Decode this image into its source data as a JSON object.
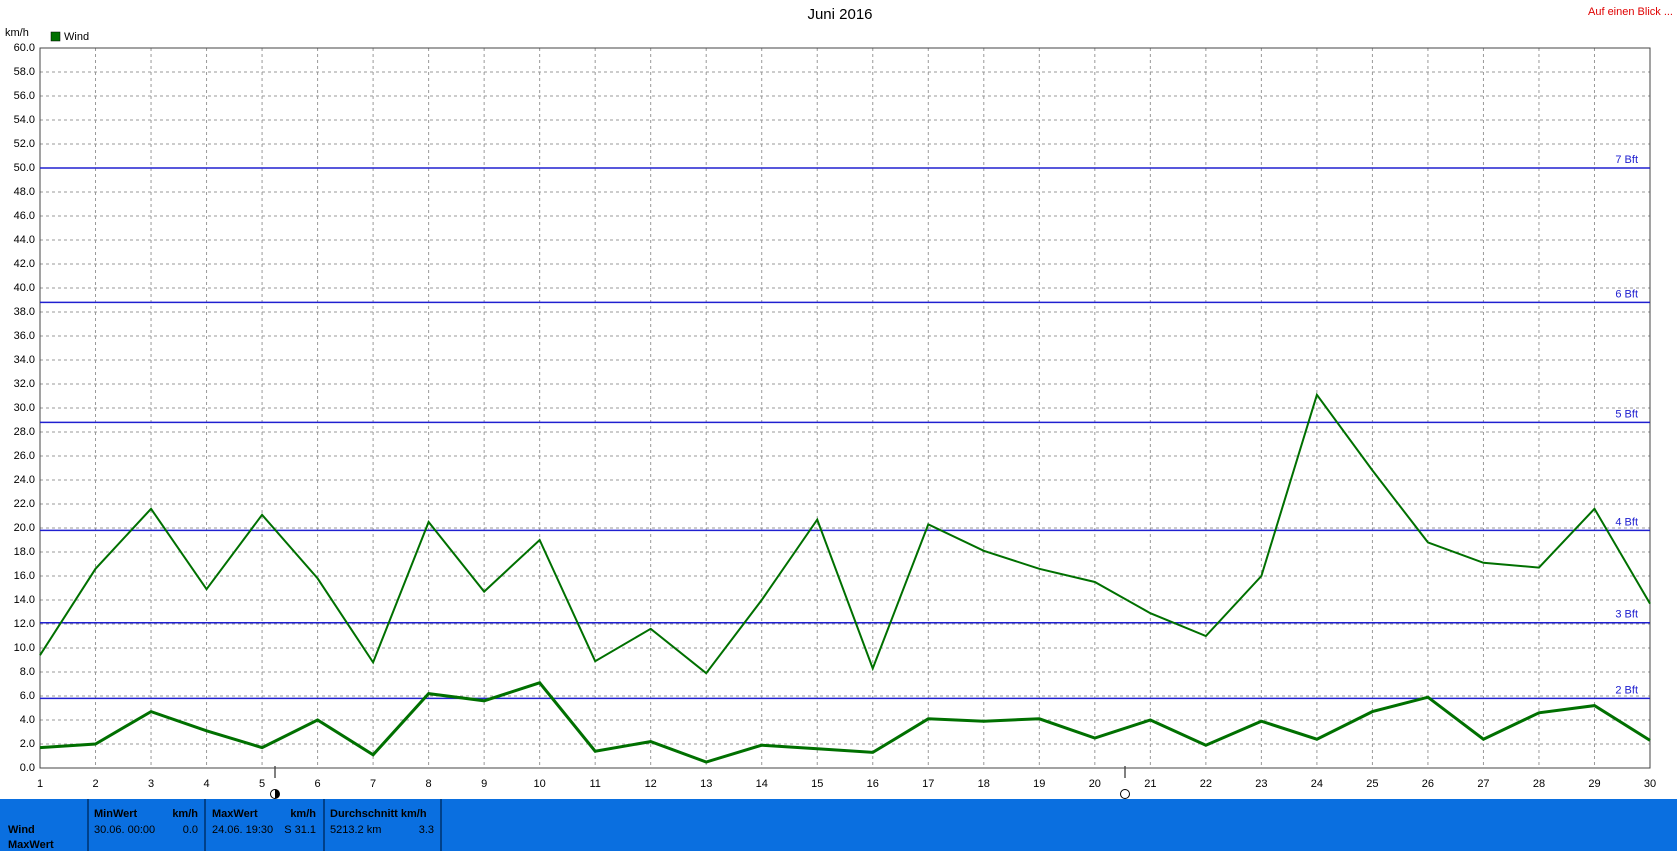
{
  "chart_data": {
    "type": "line",
    "title": "Juni 2016",
    "corner_note": "Auf einen Blick ...",
    "y_label": "km/h",
    "x": [
      1,
      2,
      3,
      4,
      5,
      6,
      7,
      8,
      9,
      10,
      11,
      12,
      13,
      14,
      15,
      16,
      17,
      18,
      19,
      20,
      21,
      22,
      23,
      24,
      25,
      26,
      27,
      28,
      29,
      30
    ],
    "xlim": [
      1,
      30
    ],
    "xticks": [
      1,
      2,
      3,
      4,
      5,
      6,
      7,
      8,
      9,
      10,
      11,
      12,
      13,
      14,
      15,
      16,
      17,
      18,
      19,
      20,
      21,
      22,
      23,
      24,
      25,
      26,
      27,
      28,
      29,
      30
    ],
    "ylim": [
      0,
      60
    ],
    "yticks": [
      {
        "value": 0,
        "label": "0.0"
      },
      {
        "value": 2,
        "label": "2.0"
      },
      {
        "value": 4,
        "label": "4.0"
      },
      {
        "value": 6,
        "label": "6.0"
      },
      {
        "value": 8,
        "label": "8.0"
      },
      {
        "value": 10,
        "label": "10.0"
      },
      {
        "value": 12,
        "label": "12.0"
      },
      {
        "value": 14,
        "label": "14.0"
      },
      {
        "value": 16,
        "label": "16.0"
      },
      {
        "value": 18,
        "label": "18.0"
      },
      {
        "value": 20,
        "label": "20.0"
      },
      {
        "value": 22,
        "label": "22.0"
      },
      {
        "value": 24,
        "label": "24.0"
      },
      {
        "value": 26,
        "label": "26.0"
      },
      {
        "value": 28,
        "label": "28.0"
      },
      {
        "value": 30,
        "label": "30.0"
      },
      {
        "value": 32,
        "label": "32.0"
      },
      {
        "value": 34,
        "label": "34.0"
      },
      {
        "value": 36,
        "label": "36.0"
      },
      {
        "value": 38,
        "label": "38.0"
      },
      {
        "value": 40,
        "label": "40.0"
      },
      {
        "value": 42,
        "label": "42.0"
      },
      {
        "value": 44,
        "label": "44.0"
      },
      {
        "value": 46,
        "label": "46.0"
      },
      {
        "value": 48,
        "label": "48.0"
      },
      {
        "value": 50,
        "label": "50.0"
      },
      {
        "value": 52,
        "label": "52.0"
      },
      {
        "value": 54,
        "label": "54.0"
      },
      {
        "value": 56,
        "label": "56.0"
      },
      {
        "value": 58,
        "label": "58.0"
      },
      {
        "value": 60,
        "label": "60.0"
      }
    ],
    "grid": true,
    "legend_position": "top-left",
    "series": [
      {
        "name": "Wind",
        "color": "#007000",
        "values": [
          9.4,
          16.6,
          21.6,
          14.9,
          21.1,
          15.8,
          8.8,
          20.5,
          14.7,
          19.0,
          8.9,
          11.6,
          7.9,
          14.0,
          20.7,
          8.3,
          20.3,
          18.1,
          16.6,
          15.5,
          12.9,
          11.0,
          16.0,
          31.1,
          24.8,
          18.8,
          17.1,
          16.7,
          21.6,
          13.7
        ]
      },
      {
        "color": "#007000",
        "values": [
          1.7,
          2.0,
          4.7,
          3.1,
          1.7,
          4.0,
          1.1,
          6.2,
          5.6,
          7.1,
          1.4,
          2.2,
          0.5,
          1.9,
          1.6,
          1.3,
          4.1,
          3.9,
          4.1,
          2.5,
          4.0,
          1.9,
          3.9,
          2.4,
          4.7,
          5.9,
          2.4,
          4.6,
          5.2,
          2.3
        ]
      }
    ],
    "reference_lines": [
      {
        "label": "2 Bft",
        "value": 5.8
      },
      {
        "label": "3 Bft",
        "value": 12.1
      },
      {
        "label": "4 Bft",
        "value": 19.8
      },
      {
        "label": "5 Bft",
        "value": 28.8
      },
      {
        "label": "6 Bft",
        "value": 38.8
      },
      {
        "label": "7 Bft",
        "value": 50.0
      }
    ],
    "reference_color": "#2020d0"
  },
  "stats": {
    "row_labels": [
      "Wind",
      "MaxWert"
    ],
    "columns": [
      {
        "header": "MinWert",
        "unit": "km/h",
        "time": "30.06.  00:00",
        "value": "0.0"
      },
      {
        "header": "MaxWert",
        "unit": "km/h",
        "time": "24.06.  19:30",
        "value": "S 31.1"
      },
      {
        "header": "Durchschnitt km/h",
        "time": "5213.2 km",
        "value": "3.3"
      }
    ]
  }
}
